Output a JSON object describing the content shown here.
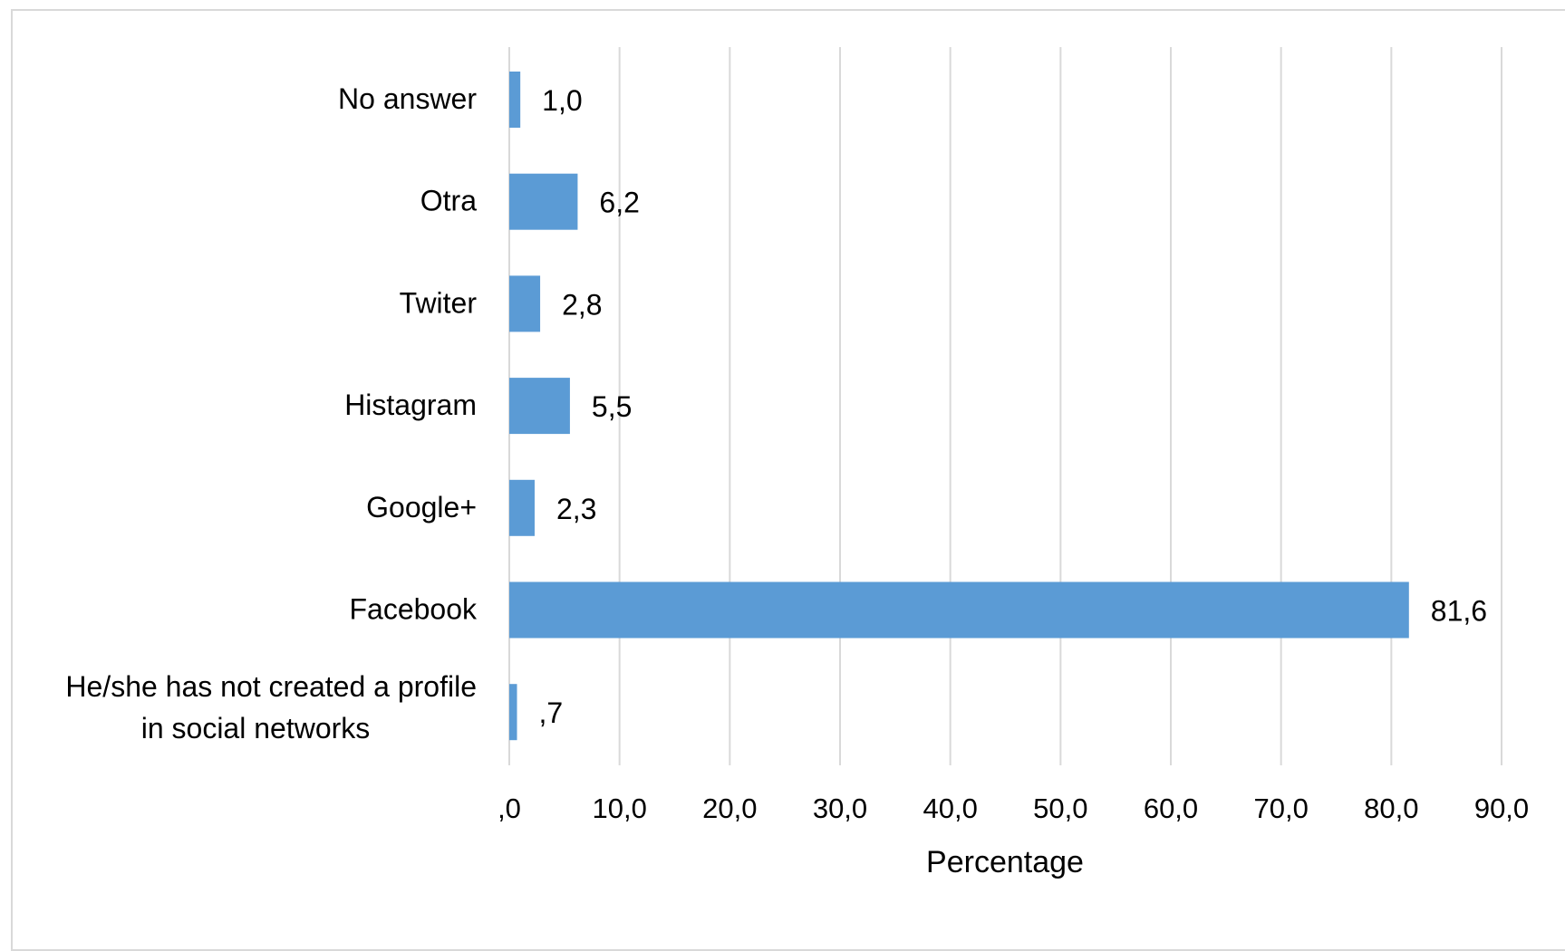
{
  "chart_data": {
    "type": "bar",
    "orientation": "horizontal",
    "categories": [
      [
        "No answer"
      ],
      [
        "Otra"
      ],
      [
        "Twiter"
      ],
      [
        "Histagram"
      ],
      [
        "Google+"
      ],
      [
        "Facebook"
      ],
      [
        "He/she has not created a profile",
        "in social networks"
      ]
    ],
    "values": [
      1.0,
      6.2,
      2.8,
      5.5,
      2.3,
      81.6,
      0.7
    ],
    "data_labels": [
      "1,0",
      "6,2",
      "2,8",
      "5,5",
      "2,3",
      "81,6",
      ",7"
    ],
    "xlabel": "Percentage",
    "xlim": [
      0,
      90
    ],
    "xticks": [
      0,
      10,
      20,
      30,
      40,
      50,
      60,
      70,
      80,
      90
    ],
    "xtick_labels": [
      ",0",
      "10,0",
      "20,0",
      "30,0",
      "40,0",
      "50,0",
      "60,0",
      "70,0",
      "80,0",
      "90,0"
    ],
    "grid": "vertical",
    "bar_color": "#5b9bd5",
    "grid_color": "#d9d9d9"
  }
}
